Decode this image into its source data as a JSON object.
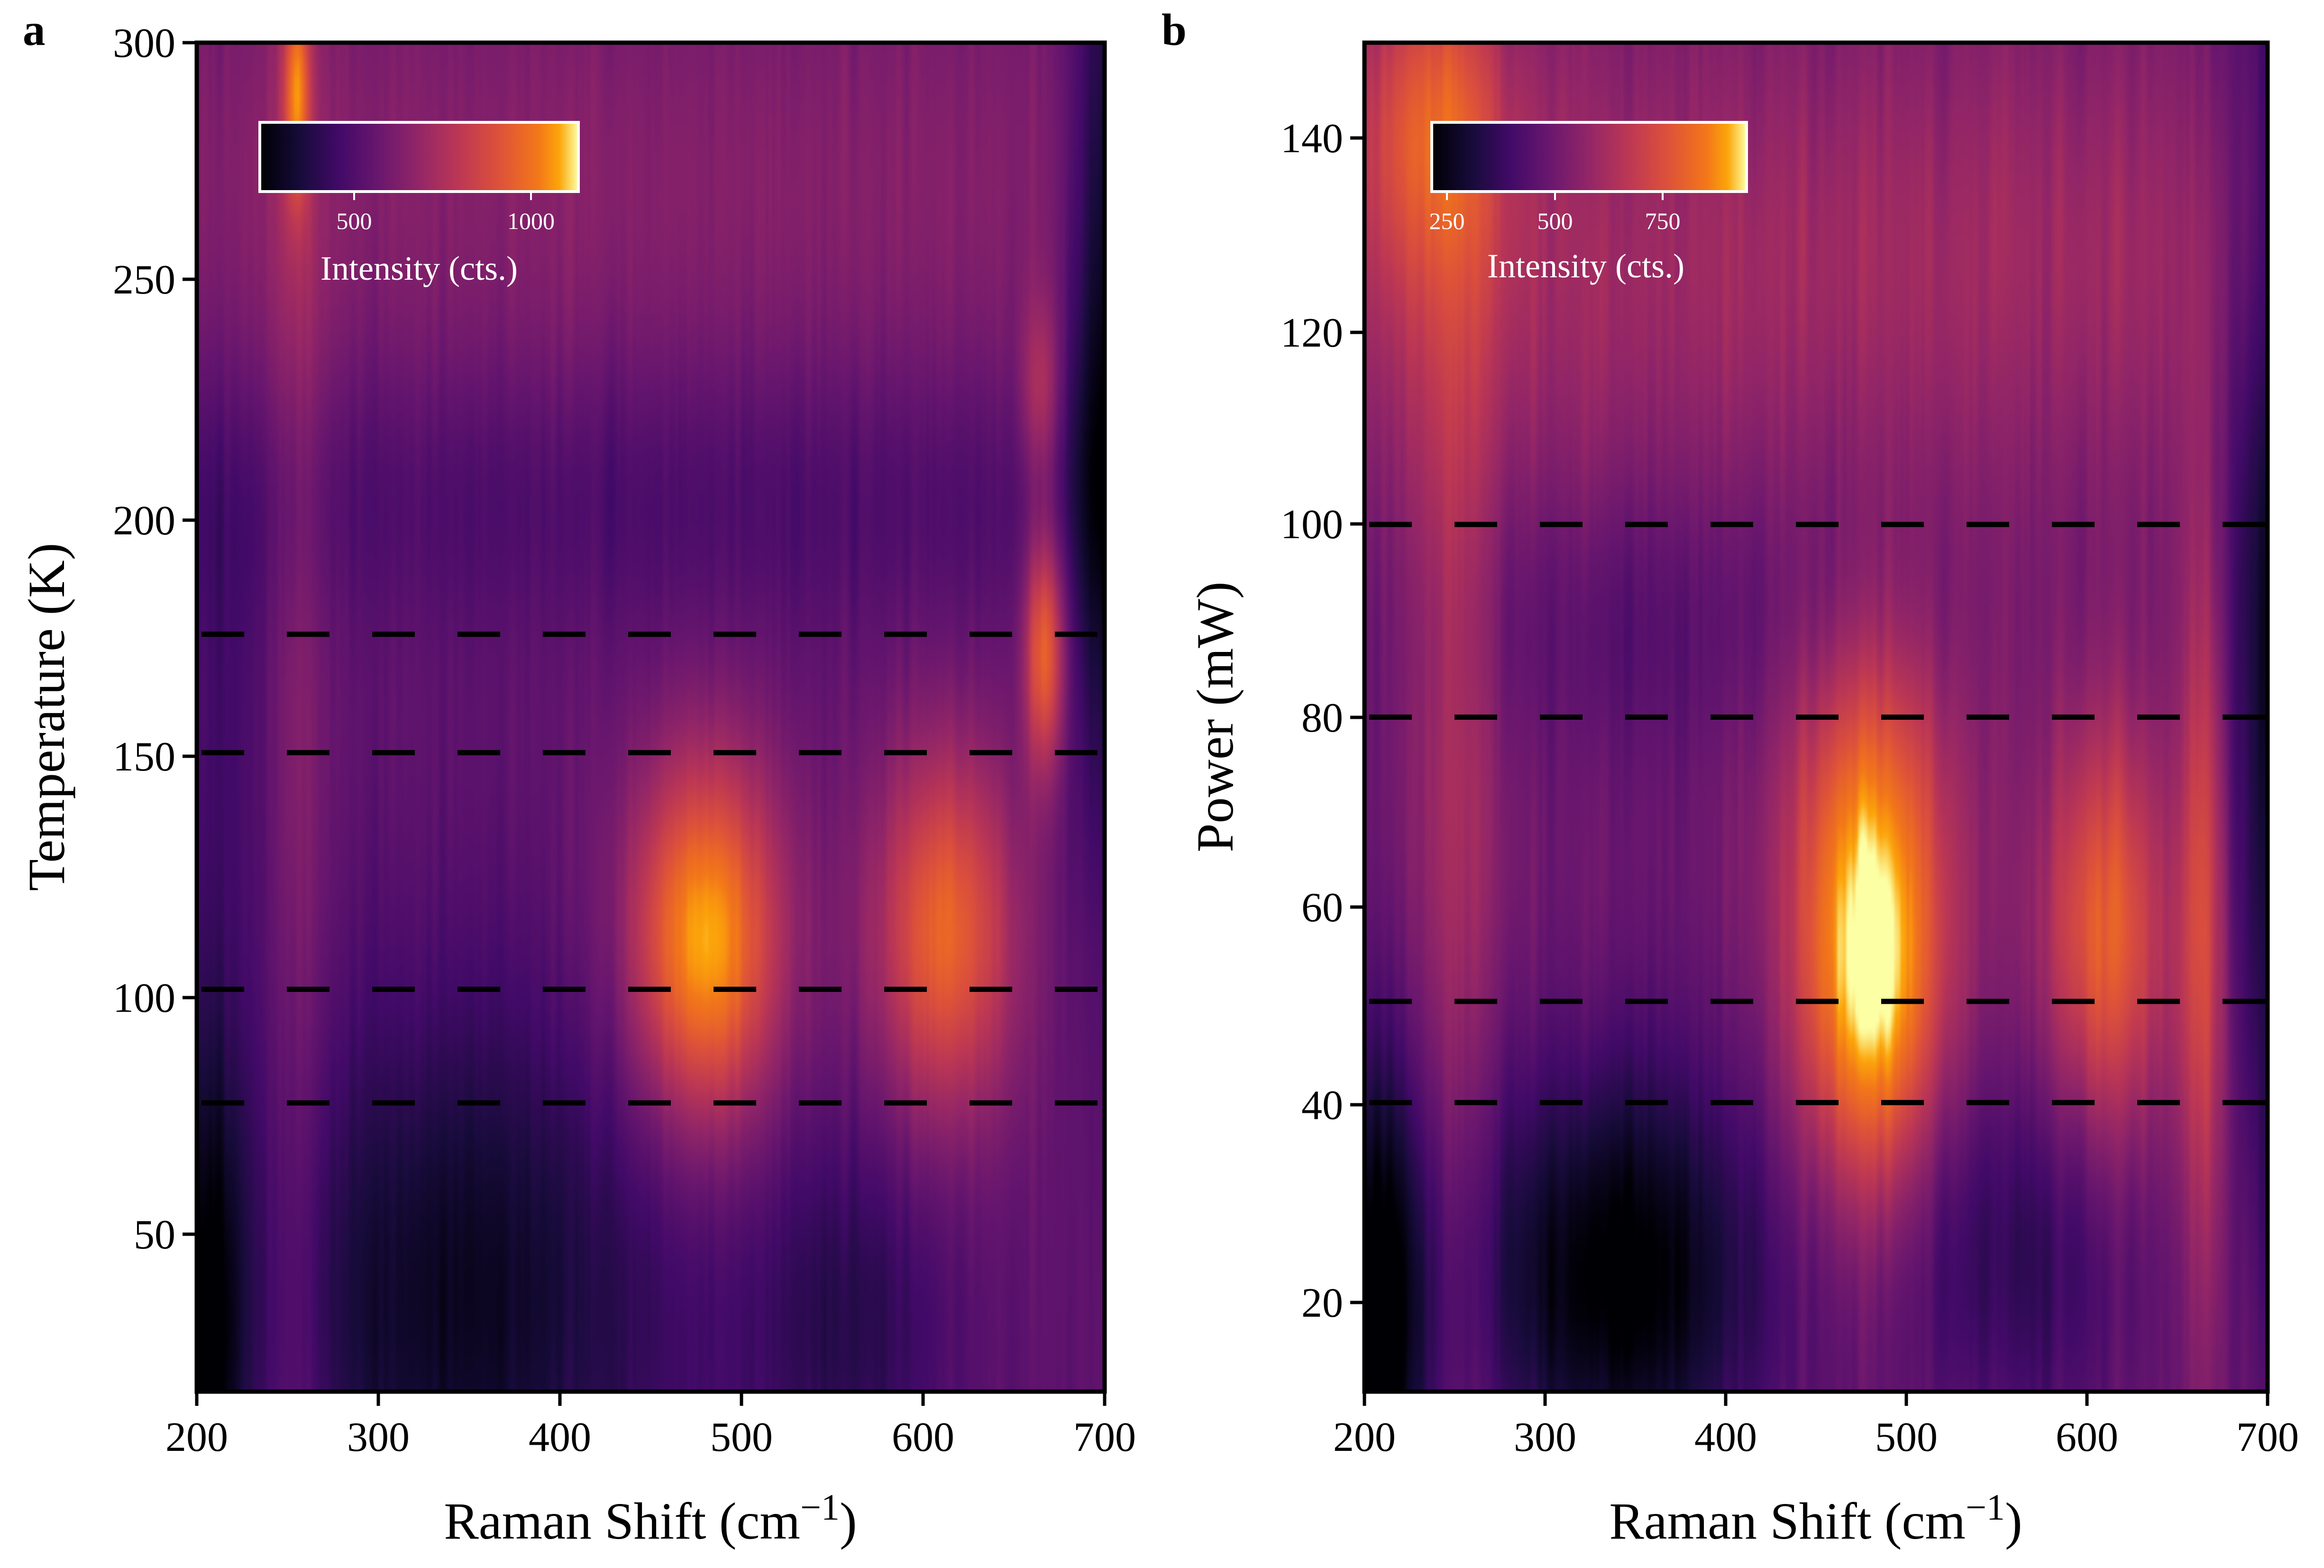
{
  "chart_data": [
    {
      "type": "heatmap",
      "panel": "a",
      "title": "",
      "xlabel": "Raman Shift (cm",
      "xlabel_exp": "−1",
      "xlabel_close": ")",
      "ylabel": "Temperature (K)",
      "xlim": [
        200,
        700
      ],
      "ylim": [
        15,
        300
      ],
      "xticks": [
        200,
        300,
        400,
        500,
        600,
        700
      ],
      "yticks": [
        50,
        100,
        150,
        200,
        250,
        300
      ],
      "colormap": "inferno",
      "colorbar": {
        "title": "Intensity (cts.)",
        "range": [
          250,
          1150
        ],
        "ticks": [
          500,
          1000
        ],
        "placement": "top-left inset"
      },
      "dashed_lines_y": [
        76,
        100,
        150,
        175
      ],
      "background_level": 560,
      "features": [
        {
          "shape": "blob",
          "x": 480,
          "y": 110,
          "sx": 30,
          "sy": 28,
          "amp": 560
        },
        {
          "shape": "blob",
          "x": 612,
          "y": 112,
          "sx": 28,
          "sy": 28,
          "amp": 420
        },
        {
          "shape": "blob",
          "x": 667,
          "y": 172,
          "sx": 8,
          "sy": 18,
          "amp": 430
        },
        {
          "shape": "blob",
          "x": 665,
          "y": 226,
          "sx": 8,
          "sy": 14,
          "amp": 200
        },
        {
          "shape": "blob",
          "x": 255,
          "y": 290,
          "sx": 5,
          "sy": 16,
          "amp": 350
        },
        {
          "shape": "hband",
          "x": 450,
          "y": 270,
          "sx": 500,
          "sy": 40,
          "amp": 100
        },
        {
          "shape": "hband",
          "x": 450,
          "y": 205,
          "sx": 500,
          "sy": 20,
          "amp": -80
        },
        {
          "shape": "blob",
          "x": 345,
          "y": 35,
          "sx": 85,
          "sy": 45,
          "amp": -250
        },
        {
          "shape": "blob",
          "x": 205,
          "y": 25,
          "sx": 15,
          "sy": 45,
          "amp": -300
        },
        {
          "shape": "blob",
          "x": 560,
          "y": 30,
          "sx": 40,
          "sy": 30,
          "amp": -150
        },
        {
          "shape": "vband",
          "x": 700,
          "y": 240,
          "sx": 14,
          "sy": 70,
          "amp": -320
        },
        {
          "shape": "vband",
          "x": 255,
          "y": 150,
          "sx": 12,
          "sy": 200,
          "amp": 120
        },
        {
          "shape": "blob",
          "x": 215,
          "y": 150,
          "sx": 25,
          "sy": 50,
          "amp": -80
        }
      ]
    },
    {
      "type": "heatmap",
      "panel": "b",
      "title": "",
      "xlabel": "Raman Shift (cm",
      "xlabel_exp": "−1",
      "xlabel_close": ")",
      "ylabel": "Power (mW)",
      "xlim": [
        200,
        700
      ],
      "ylim": [
        10,
        150
      ],
      "xticks": [
        200,
        300,
        400,
        500,
        600,
        700
      ],
      "yticks": [
        20,
        40,
        60,
        80,
        100,
        120,
        140
      ],
      "colormap": "inferno",
      "colorbar": {
        "title": "Intensity (cts.)",
        "range": [
          220,
          950
        ],
        "ticks": [
          250,
          500,
          750
        ],
        "placement": "top-left inset"
      },
      "dashed_lines_y": [
        40,
        50.5,
        80,
        100
      ],
      "background_level": 500,
      "features": [
        {
          "shape": "hband",
          "x": 450,
          "y": 128,
          "sx": 500,
          "sy": 18,
          "amp": 110
        },
        {
          "shape": "blob",
          "x": 235,
          "y": 142,
          "sx": 30,
          "sy": 12,
          "amp": 200
        },
        {
          "shape": "vband",
          "x": 250,
          "y": 85,
          "sx": 18,
          "sy": 50,
          "amp": 140
        },
        {
          "shape": "blob",
          "x": 480,
          "y": 52,
          "sx": 30,
          "sy": 16,
          "amp": 470
        },
        {
          "shape": "blob",
          "x": 478,
          "y": 75,
          "sx": 35,
          "sy": 12,
          "amp": 160
        },
        {
          "shape": "blob",
          "x": 610,
          "y": 57,
          "sx": 25,
          "sy": 16,
          "amp": 310
        },
        {
          "shape": "vband",
          "x": 665,
          "y": 60,
          "sx": 10,
          "sy": 30,
          "amp": 260
        },
        {
          "shape": "blob",
          "x": 340,
          "y": 22,
          "sx": 60,
          "sy": 16,
          "amp": -300
        },
        {
          "shape": "blob",
          "x": 210,
          "y": 18,
          "sx": 18,
          "sy": 20,
          "amp": -320
        },
        {
          "shape": "blob",
          "x": 560,
          "y": 25,
          "sx": 50,
          "sy": 14,
          "amp": -150
        },
        {
          "shape": "vband",
          "x": 700,
          "y": 95,
          "sx": 20,
          "sy": 50,
          "amp": -220
        },
        {
          "shape": "blob",
          "x": 350,
          "y": 90,
          "sx": 80,
          "sy": 10,
          "amp": -60
        }
      ]
    }
  ]
}
